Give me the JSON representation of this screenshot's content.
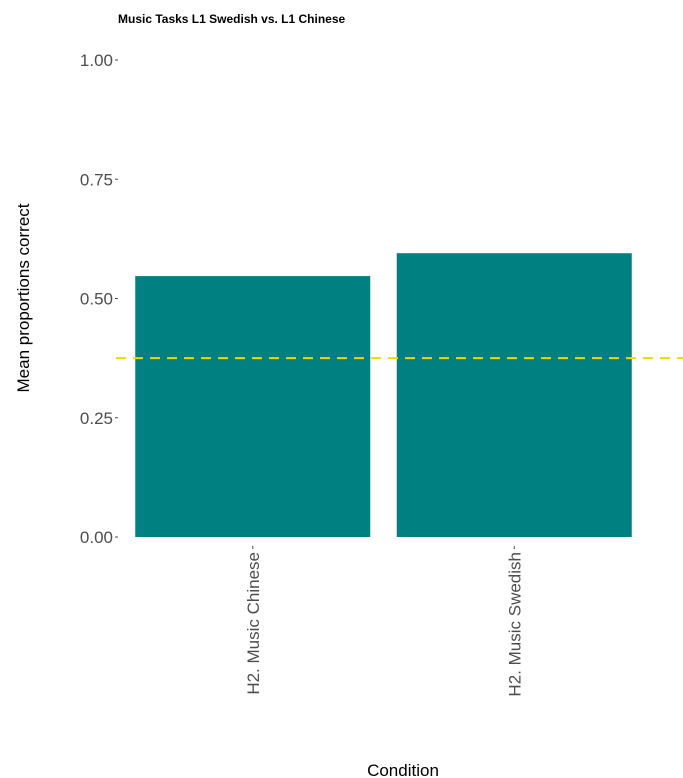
{
  "chart_data": {
    "type": "bar",
    "title": "Music Tasks L1 Swedish vs. L1 Chinese",
    "xlabel": "Condition",
    "ylabel": "Mean proportions correct",
    "categories": [
      "H2. Music Chinese",
      "H2. Music Swedish"
    ],
    "values": [
      0.547,
      0.595
    ],
    "ylim": [
      0,
      1
    ],
    "yticks": [
      0.0,
      0.25,
      0.5,
      0.75,
      1.0
    ],
    "ytick_labels": [
      "0.00",
      "0.25",
      "0.50",
      "0.75",
      "1.00"
    ],
    "reference_line": {
      "value": 0.375,
      "style": "dashed",
      "color": "#f2d600"
    },
    "bar_color": "#008080",
    "grid": false,
    "legend": "none"
  }
}
